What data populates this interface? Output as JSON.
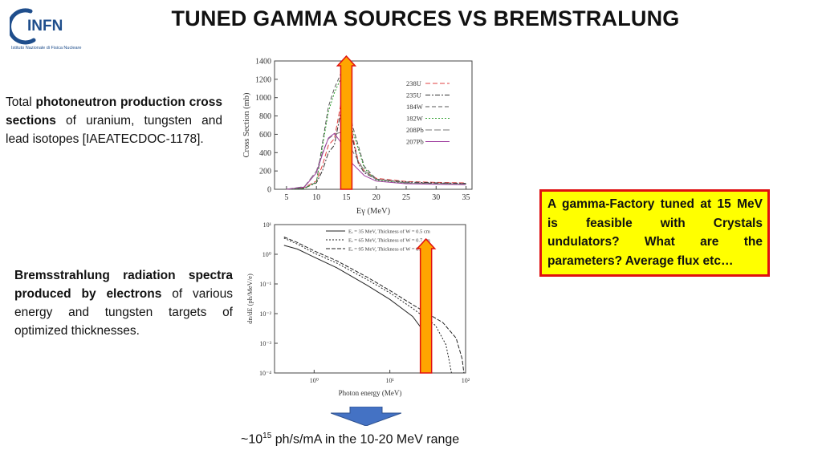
{
  "title": "TUNED GAMMA SOURCES VS BREMSTRALUNG",
  "logo": {
    "text": "INFN",
    "subtitle": "Istituto Nazionale di Fisica Nucleare"
  },
  "note_top": {
    "part1": "Total ",
    "bold": "photoneutron production cross sections",
    "part2": " of uranium, tungsten and lead isotopes [IAEATECDOC-1178]."
  },
  "note_bottom": {
    "bold": "Bremsstrahlung radiation spectra produced by electrons",
    "part2": " of various energy and tungsten targets of optimized thicknesses."
  },
  "callout": "A gamma-Factory tuned at 15 MeV is feasible with Crystals undulators? What are the parameters? Average flux etc…",
  "footer": {
    "prefix": "~10",
    "exp": "15",
    "suffix": " ph/s/mA in the 10-20 MeV range"
  },
  "colors": {
    "arrow_fill": "#ffa500",
    "arrow_stroke": "#e01010",
    "callout_bg": "#ffff00",
    "callout_border": "#e01010",
    "down_arrow": "#4472c4",
    "logo_blue": "#1f4e8c"
  },
  "chart_data": [
    {
      "type": "line",
      "title": "",
      "xlabel": "Eγ (MeV)",
      "ylabel": "Cross Section (mb)",
      "xlim": [
        3,
        36
      ],
      "ylim": [
        0,
        1400
      ],
      "xticks": [
        "5",
        "10",
        "15",
        "20",
        "25",
        "30",
        "35"
      ],
      "yticks": [
        "0",
        "200",
        "400",
        "600",
        "800",
        "1000",
        "1200",
        "1400"
      ],
      "highlight_x": 15,
      "legend": [
        "238U",
        "235U",
        "184W",
        "182W",
        "208Pb",
        "207Pb"
      ],
      "series": [
        {
          "name": "238U",
          "color": "#e04040",
          "dash": "6,3",
          "x": [
            5,
            8,
            10,
            11,
            12,
            13,
            14,
            15,
            16,
            17,
            18,
            20,
            25,
            30,
            35
          ],
          "y": [
            0,
            20,
            90,
            260,
            480,
            550,
            900,
            1250,
            600,
            300,
            200,
            120,
            85,
            75,
            70
          ]
        },
        {
          "name": "235U",
          "color": "#333333",
          "dash": "6,2,2,2",
          "x": [
            5,
            8,
            10,
            11,
            12,
            13,
            14,
            15,
            16,
            17,
            18,
            20,
            25,
            30,
            35
          ],
          "y": [
            0,
            15,
            70,
            200,
            400,
            480,
            820,
            1150,
            560,
            280,
            180,
            110,
            80,
            70,
            65
          ]
        },
        {
          "name": "184W",
          "color": "#555555",
          "dash": "5,3",
          "x": [
            5,
            8,
            10,
            11,
            12,
            13,
            14,
            15,
            16,
            18,
            20,
            25,
            30,
            35
          ],
          "y": [
            0,
            10,
            80,
            500,
            900,
            1100,
            1250,
            1200,
            700,
            250,
            110,
            70,
            65,
            60
          ]
        },
        {
          "name": "182W",
          "color": "#30a030",
          "dash": "2,2",
          "x": [
            5,
            8,
            10,
            11,
            12,
            13,
            14,
            15,
            16,
            18,
            20,
            25,
            30,
            35
          ],
          "y": [
            0,
            10,
            75,
            460,
            850,
            1050,
            1200,
            1150,
            650,
            230,
            100,
            65,
            60,
            55
          ]
        },
        {
          "name": "208Pb",
          "color": "#777777",
          "dash": "8,3",
          "x": [
            5,
            8,
            10,
            11,
            12,
            13,
            14,
            15,
            16,
            18,
            20,
            25,
            30,
            35
          ],
          "y": [
            0,
            30,
            200,
            400,
            550,
            600,
            620,
            580,
            420,
            200,
            110,
            70,
            60,
            55
          ]
        },
        {
          "name": "207Pb",
          "color": "#a040a0",
          "dash": "",
          "x": [
            5,
            8,
            10,
            11,
            12,
            13,
            14,
            15,
            16,
            18,
            20,
            25,
            30,
            35
          ],
          "y": [
            0,
            25,
            180,
            380,
            560,
            610,
            520,
            400,
            280,
            150,
            90,
            60,
            55,
            50
          ]
        }
      ]
    },
    {
      "type": "line",
      "title": "",
      "xlabel": "Photon energy (MeV)",
      "ylabel": "dn/dE (ph/MeV/e)",
      "xscale": "log",
      "yscale": "log",
      "xlim": [
        0.3,
        100
      ],
      "ylim": [
        0.0001,
        10
      ],
      "xticks": [
        "10⁰",
        "10¹",
        "10²"
      ],
      "yticks": [
        "10¹",
        "10⁰",
        "10⁻¹",
        "10⁻²",
        "10⁻³",
        "10⁻⁴"
      ],
      "highlight_x": 30,
      "series": [
        {
          "name": "Eₑ = 35 MeV, Thickness of  W = 0.5 cm",
          "dash": "",
          "x": [
            0.4,
            0.6,
            1,
            2,
            5,
            10,
            20,
            30,
            34,
            35
          ],
          "y": [
            2,
            1.5,
            0.8,
            0.35,
            0.09,
            0.03,
            0.008,
            0.002,
            0.0004,
            0.0001
          ]
        },
        {
          "name": "Eₑ = 65 MeV, Thickness of  W = 0.7 cm",
          "dash": "2,2",
          "x": [
            0.4,
            0.6,
            1,
            2,
            5,
            10,
            20,
            40,
            55,
            62,
            65
          ],
          "y": [
            3.5,
            2.2,
            1.1,
            0.5,
            0.14,
            0.05,
            0.015,
            0.004,
            0.0009,
            0.0002,
            0.0001
          ]
        },
        {
          "name": "Eₑ = 95 MeV, Thickness of  W = 0.9 cm",
          "dash": "5,2",
          "x": [
            0.4,
            0.6,
            1,
            2,
            5,
            10,
            20,
            50,
            75,
            90,
            95
          ],
          "y": [
            3.8,
            2.5,
            1.3,
            0.6,
            0.17,
            0.06,
            0.02,
            0.005,
            0.0015,
            0.0003,
            0.0001
          ]
        }
      ]
    }
  ]
}
